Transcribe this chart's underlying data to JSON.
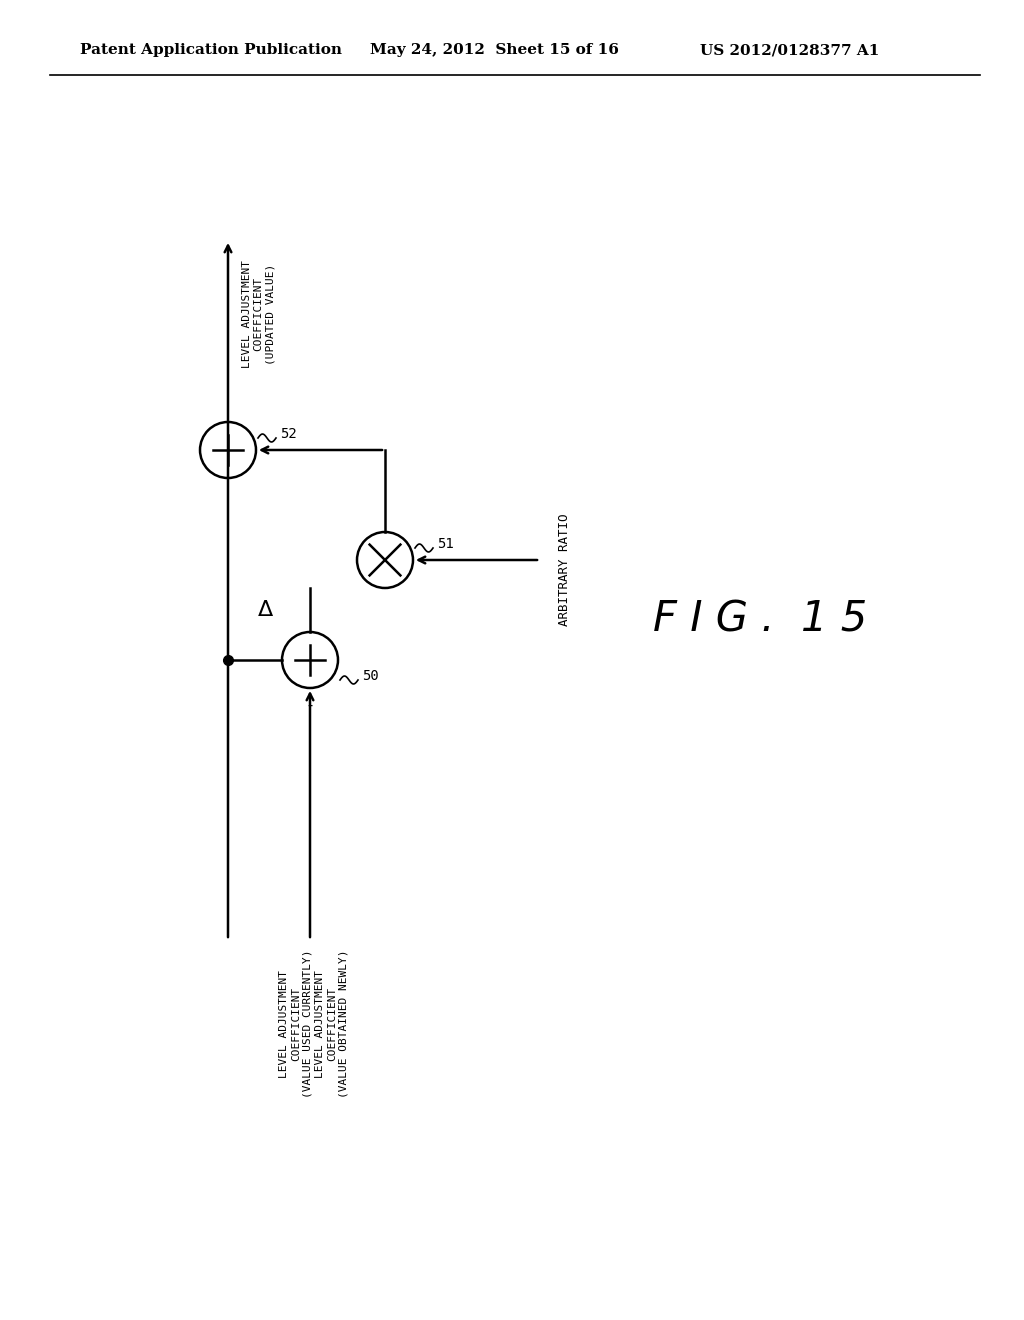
{
  "header_left": "Patent Application Publication",
  "header_mid": "May 24, 2012  Sheet 15 of 16",
  "header_right": "US 2012/0128377 A1",
  "background_color": "#ffffff",
  "line_color": "#000000",
  "text_color": "#000000",
  "fig_label": "F I G .  1 5",
  "label_50": "50",
  "label_51": "51",
  "label_52": "52",
  "arbitrary_ratio_text": "ARBITRARY RATIO",
  "top_label": "LEVEL ADJUSTMENT\nCOEFFICIENT\n(UPDATED VALUE)",
  "left_bottom_label": "LEVEL ADJUSTMENT\nCOEFFICIENT\n(VALUE USED CURRENTLY)",
  "right_bottom_label": "LEVEL ADJUSTMENT\nCOEFFICIENT\n(VALUE OBTAINED NEWLY)",
  "delta_label": "Δ",
  "minus_label": "-"
}
